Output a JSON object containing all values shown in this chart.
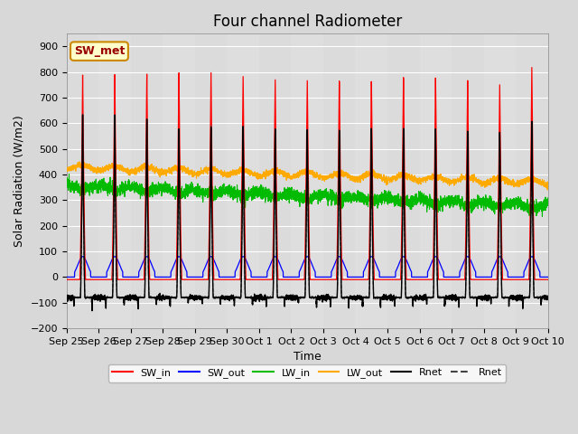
{
  "title": "Four channel Radiometer",
  "xlabel": "Time",
  "ylabel": "Solar Radiation (W/m2)",
  "ylim": [
    -200,
    950
  ],
  "yticks": [
    -200,
    -100,
    0,
    100,
    200,
    300,
    400,
    500,
    600,
    700,
    800,
    900
  ],
  "x_labels": [
    "Sep 25",
    "Sep 26",
    "Sep 27",
    "Sep 28",
    "Sep 29",
    "Sep 30",
    "Oct 1",
    "Oct 2",
    "Oct 3",
    "Oct 4",
    "Oct 5",
    "Oct 6",
    "Oct 7",
    "Oct 8",
    "Oct 9",
    "Oct 10"
  ],
  "annotation_text": "SW_met",
  "annotation_bg": "#ffffcc",
  "annotation_edge": "#cc8800",
  "annotation_text_color": "#990000",
  "colors": {
    "SW_in": "#ff0000",
    "SW_out": "#0000ff",
    "LW_in": "#00bb00",
    "LW_out": "#ffaa00",
    "Rnet_black": "#000000",
    "Rnet_dark": "#444444"
  },
  "background_color": "#d8d8d8",
  "plot_bg": "#e8e8e8",
  "grid_color": "#ffffff",
  "title_fontsize": 12,
  "axis_fontsize": 9,
  "tick_fontsize": 8,
  "legend_fontsize": 8,
  "num_days": 15,
  "points_per_day": 288,
  "sw_in_peaks": [
    790,
    795,
    800,
    808,
    812,
    800,
    790,
    790,
    785,
    780,
    793,
    788,
    775,
    755,
    820
  ],
  "rnet_peaks": [
    635,
    638,
    625,
    590,
    600,
    607,
    600,
    600,
    595,
    598,
    595,
    590,
    578,
    570,
    610
  ]
}
